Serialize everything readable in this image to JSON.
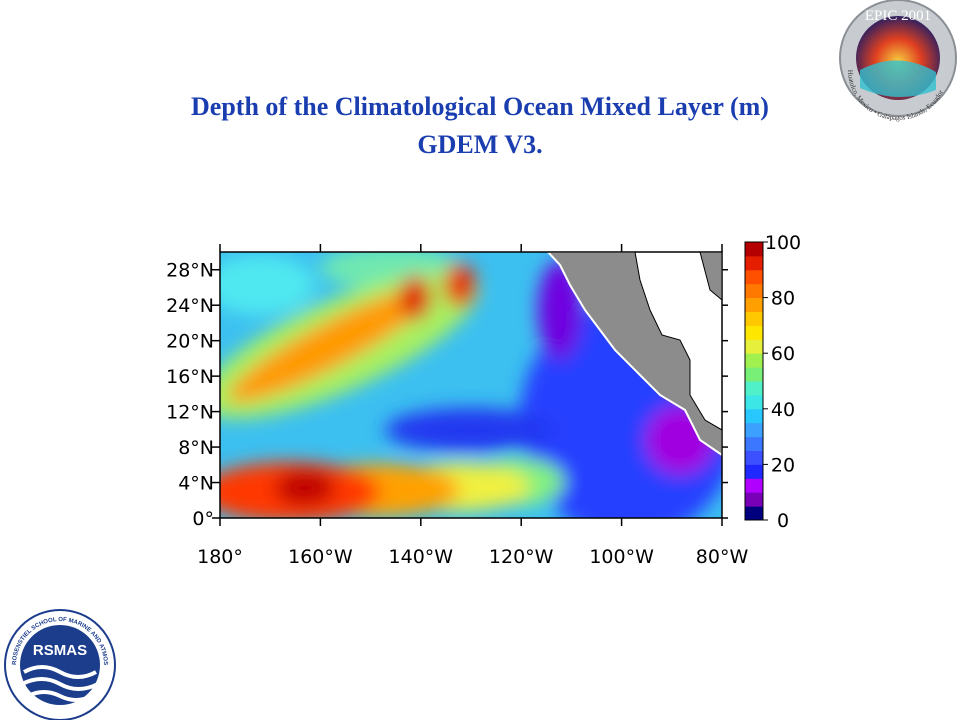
{
  "title": [
    "Depth of the Climatological Ocean Mixed Layer (m)",
    "GDEM V3."
  ],
  "map": {
    "xlim": [
      -180,
      -80
    ],
    "ylim": [
      0,
      30
    ],
    "xticks": [
      {
        "value": -180,
        "label": "180°"
      },
      {
        "value": -160,
        "label": "160°W"
      },
      {
        "value": -140,
        "label": "140°W"
      },
      {
        "value": -120,
        "label": "120°W"
      },
      {
        "value": -100,
        "label": "100°W"
      },
      {
        "value": -80,
        "label": "80°W"
      }
    ],
    "yticks": [
      {
        "value": 0,
        "label": "0°"
      },
      {
        "value": 4,
        "label": "4°N"
      },
      {
        "value": 8,
        "label": "8°N"
      },
      {
        "value": 12,
        "label": "12°N"
      },
      {
        "value": 16,
        "label": "16°N"
      },
      {
        "value": 20,
        "label": "20°N"
      },
      {
        "value": 24,
        "label": "24°N"
      },
      {
        "value": 28,
        "label": "28°N"
      }
    ]
  },
  "colorbar": {
    "lim": [
      0,
      100
    ],
    "ticks": [
      0,
      20,
      40,
      60,
      80,
      100
    ],
    "colors": [
      "#00007f",
      "#7a00b8",
      "#b000ff",
      "#1e28ff",
      "#3c50ff",
      "#3c78ff",
      "#3ca0ff",
      "#28c8ff",
      "#3ce6e6",
      "#50f0c8",
      "#78f078",
      "#a0f050",
      "#e6f03c",
      "#ffe600",
      "#ffc800",
      "#ffa000",
      "#ff7800",
      "#ff5000",
      "#e61e00",
      "#b40000"
    ]
  },
  "logos": {
    "epic": {
      "title": "EPIC 2001",
      "caption": "Huatulco, Mexico • Galápagos Islands, Ecuador"
    },
    "rsmas": {
      "name": "RSMAS",
      "caption": "ROSENSTIEL SCHOOL OF MARINE AND ATMOSPHERIC SCIENCE • UNIVERSITY OF MIAMI •"
    }
  }
}
